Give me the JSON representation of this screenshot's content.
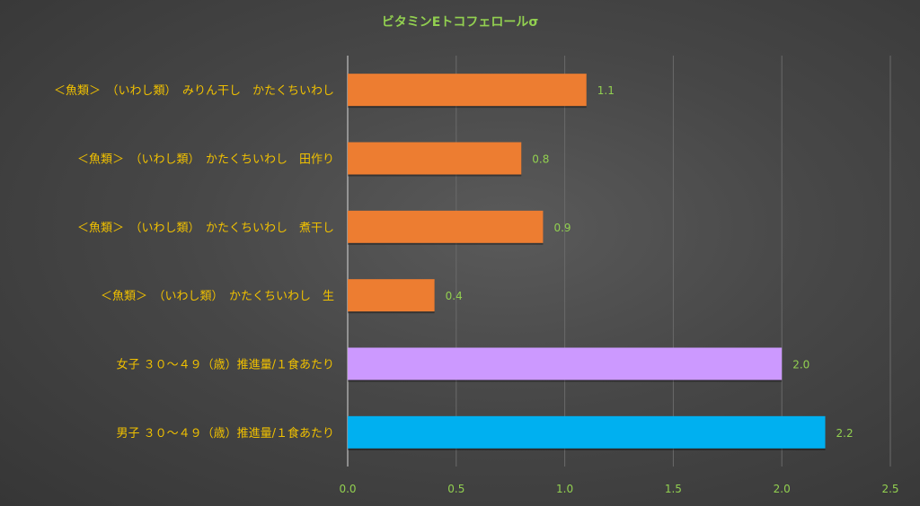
{
  "chart_data": {
    "type": "bar",
    "orientation": "horizontal",
    "title": "ビタミンEトコフェロールσ",
    "xlabel": "",
    "ylabel": "",
    "xlim": [
      0,
      2.5
    ],
    "x_ticks": [
      "0.0",
      "0.5",
      "1.0",
      "1.5",
      "2.0",
      "2.5"
    ],
    "grid": true,
    "legend": "none",
    "categories": [
      "＜魚類＞　（いわし類）　みりん干し　かたくちいわし",
      "＜魚類＞　（いわし類）　かたくちいわし　田作り",
      "＜魚類＞　（いわし類）　かたくちいわし　煮干し",
      "＜魚類＞　（いわし類）　かたくちいわし　生",
      "女子 ３０～４９（歳）推進量/１食あたり",
      "男子 ３０～４９（歳）推進量/１食あたり"
    ],
    "values": [
      1.1,
      0.8,
      0.9,
      0.4,
      2.0,
      2.2
    ],
    "data_labels": [
      "1.1",
      "0.8",
      "0.9",
      "0.4",
      "2.0",
      "2.2"
    ],
    "bar_colors": [
      "#ed7d31",
      "#ed7d31",
      "#ed7d31",
      "#ed7d31",
      "#cc99ff",
      "#00b0f0"
    ],
    "colors": {
      "title": "#92d050",
      "tick_label": "#92d050",
      "category_label": "#f0c000",
      "gridline": "#6a6a6a",
      "axis": "#d9d9d9"
    }
  }
}
